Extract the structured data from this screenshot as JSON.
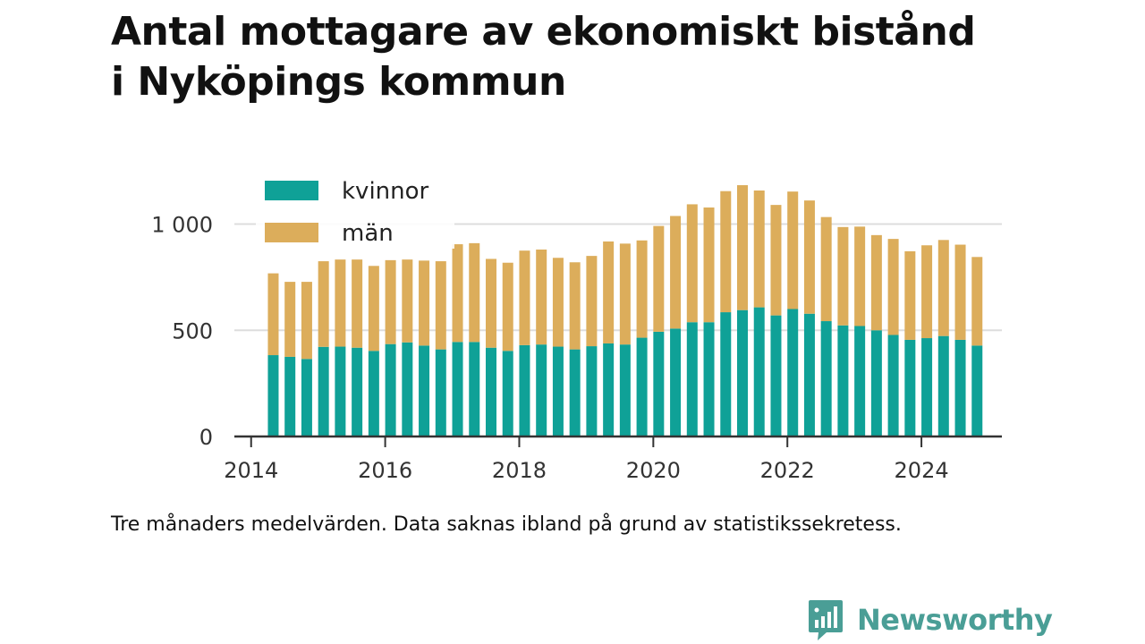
{
  "title_lines": [
    "Antal mottagare av ekonomiskt bistånd",
    "i Nyköpings kommun"
  ],
  "caption": "Tre månaders medelvärden. Data saknas ibland på grund av statistikssekretess.",
  "brand": {
    "name": "Newsworthy",
    "color": "#4a9e96",
    "icon": "chart-bubble-icon"
  },
  "chart_data": {
    "type": "bar",
    "stacked": true,
    "series": [
      {
        "name": "kvinnor",
        "color": "#0fa197",
        "values": [
          383,
          375,
          365,
          422,
          423,
          418,
          403,
          435,
          443,
          428,
          410,
          445,
          445,
          418,
          403,
          430,
          433,
          423,
          410,
          425,
          438,
          433,
          465,
          493,
          508,
          538,
          538,
          585,
          595,
          608,
          570,
          600,
          578,
          543,
          523,
          520,
          500,
          478,
          455,
          463,
          473,
          455,
          428
        ]
      },
      {
        "name": "män",
        "color": "#dcad5b",
        "values": [
          385,
          353,
          363,
          403,
          410,
          415,
          400,
          395,
          390,
          400,
          415,
          460,
          465,
          418,
          415,
          445,
          447,
          418,
          410,
          425,
          480,
          475,
          458,
          498,
          530,
          555,
          540,
          570,
          588,
          550,
          520,
          553,
          533,
          490,
          463,
          468,
          448,
          452,
          417,
          437,
          452,
          448,
          417
        ]
      }
    ],
    "x_start": 2014.33,
    "x_step": 0.25,
    "xlim": [
      2013.75,
      2025.2
    ],
    "xticks": [
      2014,
      2016,
      2018,
      2020,
      2022,
      2024
    ],
    "xtick_labels": [
      "2014",
      "2016",
      "2018",
      "2020",
      "2022",
      "2024"
    ],
    "ylim": [
      0,
      1200
    ],
    "yticks": [
      0,
      500,
      1000
    ],
    "ytick_labels": [
      "0",
      "500",
      "1 000"
    ],
    "grid": true,
    "legend": "top-left"
  }
}
